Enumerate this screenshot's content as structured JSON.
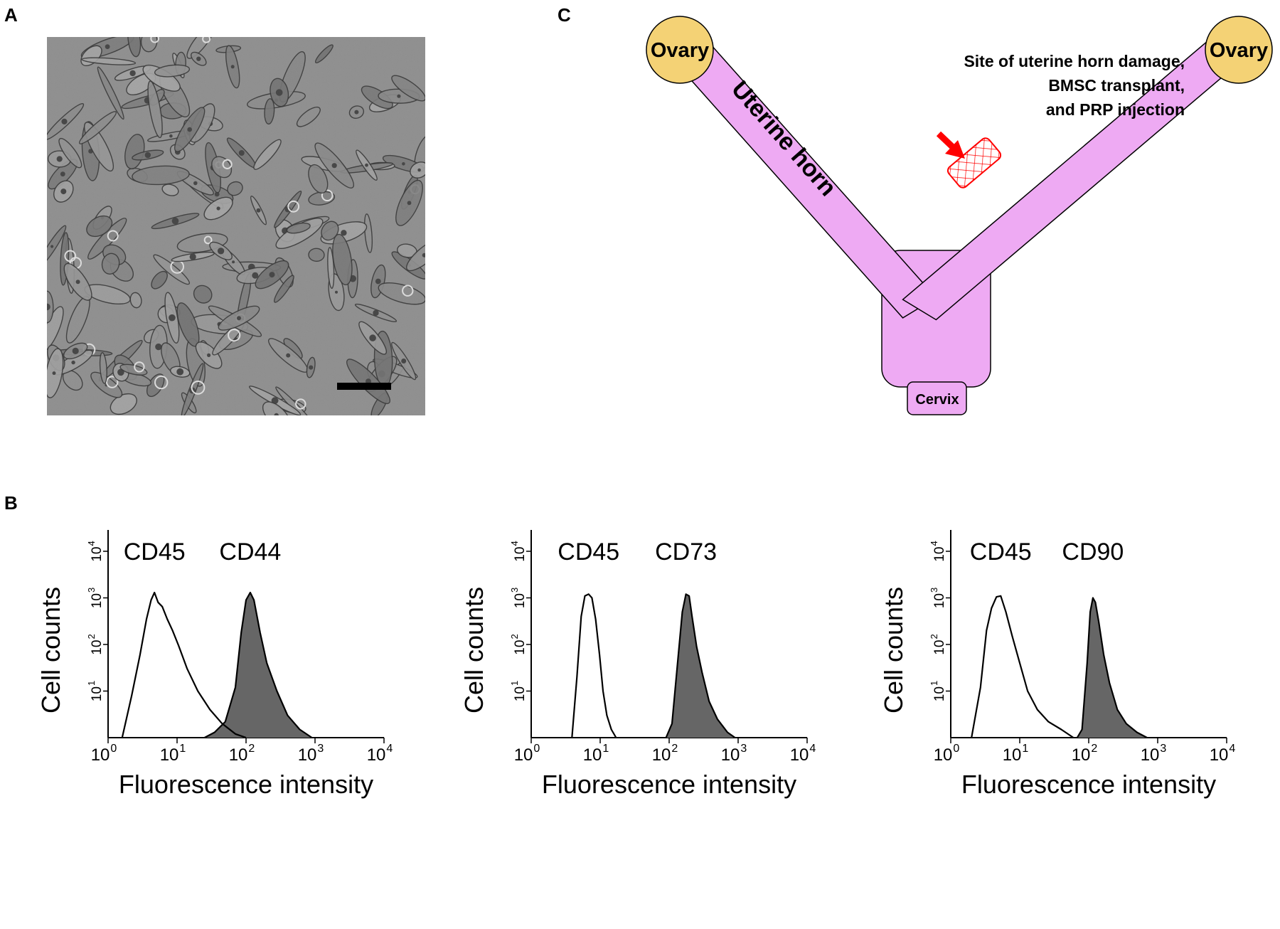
{
  "panels": {
    "a": "A",
    "b": "B",
    "c": "C"
  },
  "diagram": {
    "ovary_left": "Ovary",
    "ovary_right": "Ovary",
    "uterine_horn": "Uterine horn",
    "cervix": "Cervix",
    "annotation_lines": [
      "Site of uterine horn damage,",
      "BMSC transplant,",
      "and PRP injection"
    ],
    "colors": {
      "uterus": "#eeaaf3",
      "ovary": "#f4d275",
      "damage": "#ff0000"
    }
  },
  "histograms": [
    {
      "negative": "CD45",
      "positive": "CD44"
    },
    {
      "negative": "CD45",
      "positive": "CD73"
    },
    {
      "negative": "CD45",
      "positive": "CD90"
    }
  ],
  "chart_data": [
    {
      "type": "area",
      "xlabel": "Fluorescence intensity",
      "ylabel": "Cell counts",
      "x_scale": "log",
      "y_scale": "log",
      "xlim": [
        1,
        10000
      ],
      "ylim": [
        1,
        10000
      ],
      "x_tick_labels": [
        "10^0",
        "10^1",
        "10^2",
        "10^3",
        "10^4"
      ],
      "y_tick_labels": [
        "10^1",
        "10^2",
        "10^3",
        "10^4"
      ],
      "series": [
        {
          "name": "CD45",
          "fill": "none",
          "x": [
            1.6,
            2.2,
            2.9,
            3.6,
            4.2,
            4.7,
            5.3,
            6.1,
            7.2,
            8.6,
            10.5,
            14,
            20,
            30,
            45,
            70,
            100
          ],
          "y": [
            1,
            8,
            60,
            350,
            900,
            1300,
            800,
            650,
            350,
            200,
            95,
            30,
            10,
            4,
            2,
            1.2,
            1
          ]
        },
        {
          "name": "CD44",
          "fill": "#666666",
          "x": [
            25,
            35,
            50,
            70,
            85,
            100,
            115,
            130,
            160,
            200,
            280,
            400,
            600,
            900
          ],
          "y": [
            1,
            1.3,
            2.2,
            12,
            180,
            900,
            1300,
            900,
            180,
            40,
            10,
            3,
            1.5,
            1
          ]
        }
      ]
    },
    {
      "type": "area",
      "xlabel": "Fluorescence intensity",
      "ylabel": "Cell counts",
      "x_scale": "log",
      "y_scale": "log",
      "xlim": [
        1,
        10000
      ],
      "ylim": [
        1,
        10000
      ],
      "x_tick_labels": [
        "10^0",
        "10^1",
        "10^2",
        "10^3",
        "10^4"
      ],
      "y_tick_labels": [
        "10^1",
        "10^2",
        "10^3",
        "10^4"
      ],
      "series": [
        {
          "name": "CD45",
          "fill": "none",
          "x": [
            3.9,
            4.6,
            5.3,
            6.0,
            6.8,
            7.6,
            8.6,
            9.8,
            11,
            12.5,
            14.5,
            17
          ],
          "y": [
            1,
            20,
            400,
            1100,
            1200,
            1000,
            350,
            60,
            10,
            3,
            1.5,
            1
          ]
        },
        {
          "name": "CD73",
          "fill": "#666666",
          "x": [
            90,
            110,
            130,
            155,
            175,
            195,
            215,
            250,
            300,
            380,
            500,
            700,
            900
          ],
          "y": [
            1,
            2,
            30,
            500,
            1200,
            1100,
            400,
            90,
            25,
            6,
            2.5,
            1.3,
            1
          ]
        }
      ]
    },
    {
      "type": "area",
      "xlabel": "Fluorescence intensity",
      "ylabel": "Cell counts",
      "x_scale": "log",
      "y_scale": "log",
      "xlim": [
        1,
        10000
      ],
      "ylim": [
        1,
        10000
      ],
      "x_tick_labels": [
        "10^0",
        "10^1",
        "10^2",
        "10^3",
        "10^4"
      ],
      "y_tick_labels": [
        "10^1",
        "10^2",
        "10^3",
        "10^4"
      ],
      "series": [
        {
          "name": "CD45",
          "fill": "none",
          "x": [
            2.0,
            2.7,
            3.3,
            3.9,
            4.6,
            5.3,
            6.3,
            7.8,
            10,
            13,
            18,
            26,
            40,
            60
          ],
          "y": [
            1,
            12,
            200,
            600,
            1050,
            1100,
            500,
            150,
            40,
            10,
            4,
            2.2,
            1.5,
            1
          ]
        },
        {
          "name": "CD90",
          "fill": "#666666",
          "x": [
            68,
            80,
            95,
            105,
            115,
            125,
            140,
            165,
            200,
            260,
            350,
            500,
            700
          ],
          "y": [
            1,
            1.5,
            40,
            500,
            1000,
            800,
            300,
            60,
            15,
            4,
            2,
            1.3,
            1
          ]
        }
      ]
    }
  ]
}
